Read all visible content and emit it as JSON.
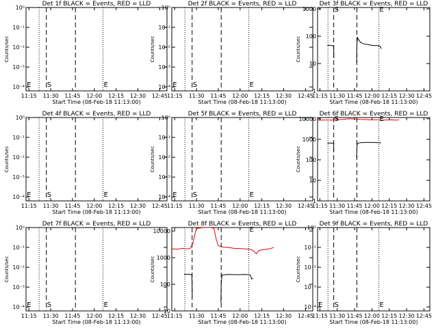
{
  "chart_data": [
    {
      "type": "line",
      "title": "Det 1f BLACK = Events, RED = LLD",
      "xlabel": "Start Time (08-Feb-18 11:13:00)",
      "ylabel": "Counts/sec",
      "xlim": [
        673,
        770
      ],
      "x_ticks": [
        "11:15",
        "11:30",
        "11:45",
        "12:00",
        "12:15",
        "12:30",
        "12:45"
      ],
      "yscale": "log",
      "y_ticks": [
        "10⁰",
        "10⁻¹",
        "10⁻²",
        "10⁻³",
        "10⁻⁴"
      ],
      "y_tick_exp": [
        0,
        -1,
        -2,
        -3,
        -4
      ],
      "ylim": [
        -4.2,
        0
      ],
      "dotted": [
        682,
        726
      ],
      "dashed": [
        687,
        707
      ],
      "markers": [
        {
          "text": "E",
          "x": 673.6,
          "y": -3.86
        },
        {
          "text": "S",
          "x": 687.5,
          "y": -3.86
        },
        {
          "text": "E",
          "x": 726.5,
          "y": -3.86
        }
      ],
      "series": []
    },
    {
      "type": "line",
      "title": "Det 2f BLACK = Events, RED = LLD",
      "xlabel": "Start Time (08-Feb-18 11:13:00)",
      "ylabel": "Counts/sec",
      "xlim": [
        673,
        770
      ],
      "x_ticks": [
        "11:15",
        "11:30",
        "11:45",
        "12:00",
        "12:15",
        "12:30",
        "12:45"
      ],
      "yscale": "log",
      "y_ticks": [
        "10⁰",
        "10⁻¹",
        "10⁻²",
        "10⁻³",
        "10⁻⁴"
      ],
      "y_tick_exp": [
        0,
        -1,
        -2,
        -3,
        -4
      ],
      "ylim": [
        -4.2,
        0
      ],
      "dotted": [
        682,
        726
      ],
      "dashed": [
        687,
        707
      ],
      "markers": [
        {
          "text": "E",
          "x": 673.6,
          "y": -3.86
        },
        {
          "text": "S",
          "x": 687.5,
          "y": -3.86
        },
        {
          "text": "E",
          "x": 726.5,
          "y": -3.86
        }
      ],
      "series": []
    },
    {
      "type": "line",
      "title": "Det 3f BLACK = Events, RED = LLD",
      "xlabel": "Start Time (08-Feb-18 11:13:00)",
      "ylabel": "Counts/sec",
      "xlim": [
        673,
        770
      ],
      "x_ticks": [
        "11:15",
        "11:30",
        "11:45",
        "12:00",
        "12:15",
        "12:30",
        "12:45"
      ],
      "yscale": "log",
      "y_ticks": [
        "1",
        "10",
        "100",
        "1000"
      ],
      "y_tick_exp": [
        0,
        1,
        2,
        3
      ],
      "ylim": [
        0,
        3.05
      ],
      "dotted": [
        682,
        726
      ],
      "dashed": [
        687,
        707
      ],
      "markers": [
        {
          "text": "S",
          "x": 687.5,
          "y": 3
        },
        {
          "text": "E",
          "x": 726.5,
          "y": 3
        }
      ],
      "series": [
        {
          "color": "#000000",
          "points": [
            [
              681.5,
              1.66
            ],
            [
              683,
              1.67
            ],
            [
              685,
              1.66
            ],
            [
              686.8,
              1.64
            ],
            [
              687,
              1.55
            ],
            [
              687.1,
              1.2
            ]
          ]
        },
        {
          "color": "#000000",
          "points": [
            [
              706.8,
              1.05
            ],
            [
              707,
              1.7
            ],
            [
              707.5,
              1.95
            ],
            [
              708.5,
              1.88
            ],
            [
              710,
              1.78
            ],
            [
              713,
              1.72
            ],
            [
              717,
              1.69
            ],
            [
              721,
              1.66
            ],
            [
              725,
              1.66
            ],
            [
              727,
              1.63
            ],
            [
              728.2,
              1.54
            ]
          ]
        }
      ]
    },
    {
      "type": "line",
      "title": "Det 4f BLACK = Events, RED = LLD",
      "xlabel": "Start Time (08-Feb-18 11:13:00)",
      "ylabel": "Counts/sec",
      "xlim": [
        673,
        770
      ],
      "x_ticks": [
        "11:15",
        "11:30",
        "11:45",
        "12:00",
        "12:15",
        "12:30",
        "12:45"
      ],
      "yscale": "log",
      "y_ticks": [
        "10⁰",
        "10⁻¹",
        "10⁻²",
        "10⁻³",
        "10⁻⁴"
      ],
      "y_tick_exp": [
        0,
        -1,
        -2,
        -3,
        -4
      ],
      "ylim": [
        -4.2,
        0
      ],
      "dotted": [
        682,
        726
      ],
      "dashed": [
        687,
        707
      ],
      "markers": [
        {
          "text": "E",
          "x": 673.6,
          "y": -3.86
        },
        {
          "text": "S",
          "x": 687.5,
          "y": -3.86
        },
        {
          "text": "E",
          "x": 726.5,
          "y": -3.86
        }
      ],
      "series": []
    },
    {
      "type": "line",
      "title": "Det 5f BLACK = Events, RED = LLD",
      "xlabel": "Start Time (08-Feb-18 11:13:00)",
      "ylabel": "Counts/sec",
      "xlim": [
        673,
        770
      ],
      "x_ticks": [
        "11:15",
        "11:30",
        "11:45",
        "12:00",
        "12:15",
        "12:30",
        "12:45"
      ],
      "yscale": "log",
      "y_ticks": [
        "10⁰",
        "10⁻¹",
        "10⁻²",
        "10⁻³",
        "10⁻⁴"
      ],
      "y_tick_exp": [
        0,
        -1,
        -2,
        -3,
        -4
      ],
      "ylim": [
        -4.2,
        0
      ],
      "dotted": [
        682,
        726
      ],
      "dashed": [
        687,
        707
      ],
      "markers": [
        {
          "text": "E",
          "x": 673.6,
          "y": -3.86
        },
        {
          "text": "S",
          "x": 687.5,
          "y": -3.86
        },
        {
          "text": "E",
          "x": 726.5,
          "y": -3.86
        }
      ],
      "series": []
    },
    {
      "type": "line",
      "title": "Det 6f BLACK = Events, RED = LLD",
      "xlabel": "Start Time (08-Feb-18 11:13:00)",
      "ylabel": "Counts/sec",
      "xlim": [
        673,
        770
      ],
      "x_ticks": [
        "11:15",
        "11:30",
        "11:45",
        "12:00",
        "12:15",
        "12:30",
        "12:45"
      ],
      "yscale": "log",
      "y_ticks": [
        "1",
        "10",
        "100",
        "1000",
        "10000"
      ],
      "y_tick_exp": [
        0,
        1,
        2,
        3,
        4
      ],
      "ylim": [
        0,
        4.06
      ],
      "dotted": [
        682,
        726
      ],
      "dashed": [
        687,
        707
      ],
      "markers": [
        {
          "text": "S",
          "x": 687.5,
          "y": 4.02
        },
        {
          "text": "E",
          "x": 726.5,
          "y": 4.02
        }
      ],
      "series": [
        {
          "color": "#e00000",
          "points": [
            [
              673,
              3.93
            ],
            [
              678,
              3.94
            ],
            [
              683,
              3.94
            ],
            [
              686,
              3.93
            ],
            [
              687,
              4.0
            ],
            [
              688,
              3.97
            ],
            [
              690,
              3.95
            ],
            [
              695,
              3.97
            ],
            [
              700,
              4.0
            ],
            [
              705,
              3.99
            ],
            [
              710,
              3.97
            ],
            [
              715,
              3.96
            ],
            [
              720,
              3.95
            ],
            [
              725,
              3.95
            ],
            [
              728,
              3.93
            ],
            [
              732,
              3.94
            ],
            [
              737,
              3.95
            ],
            [
              741,
              3.93
            ],
            [
              743.2,
              3.95
            ]
          ]
        },
        {
          "color": "#000000",
          "points": [
            [
              681.5,
              2.81
            ],
            [
              684,
              2.82
            ],
            [
              686.8,
              2.81
            ],
            [
              687,
              2.4
            ]
          ]
        },
        {
          "color": "#000000",
          "points": [
            [
              706.8,
              2.1
            ],
            [
              707,
              2.6
            ],
            [
              707.5,
              2.8
            ],
            [
              710,
              2.84
            ],
            [
              715,
              2.85
            ],
            [
              720,
              2.85
            ],
            [
              725,
              2.84
            ],
            [
              728,
              2.83
            ]
          ]
        }
      ]
    },
    {
      "type": "line",
      "title": "Det 7f BLACK = Events, RED = LLD",
      "xlabel": "Start Time (08-Feb-18 11:13:00)",
      "ylabel": "Counts/sec",
      "xlim": [
        673,
        770
      ],
      "x_ticks": [
        "11:15",
        "11:30",
        "11:45",
        "12:00",
        "12:15",
        "12:30",
        "12:45"
      ],
      "yscale": "log",
      "y_ticks": [
        "10⁰",
        "10⁻¹",
        "10⁻²",
        "10⁻³",
        "10⁻⁴"
      ],
      "y_tick_exp": [
        0,
        -1,
        -2,
        -3,
        -4
      ],
      "ylim": [
        -4.2,
        0
      ],
      "dotted": [
        682,
        726
      ],
      "dashed": [
        687,
        707
      ],
      "markers": [
        {
          "text": "E",
          "x": 673.6,
          "y": -3.86
        },
        {
          "text": "S",
          "x": 687.5,
          "y": -3.86
        },
        {
          "text": "E",
          "x": 726.5,
          "y": -3.86
        }
      ],
      "series": []
    },
    {
      "type": "line",
      "title": "Det 8f BLACK = Events, RED = LLD",
      "xlabel": "Start Time (08-Feb-18 11:13:00)",
      "ylabel": "Counts/sec",
      "xlim": [
        673,
        770
      ],
      "x_ticks": [
        "11:15",
        "11:30",
        "11:45",
        "12:00",
        "12:15",
        "12:30",
        "12:45"
      ],
      "yscale": "log",
      "y_ticks": [
        "10",
        "100",
        "1000",
        "10000"
      ],
      "y_tick_exp": [
        1,
        2,
        3,
        4
      ],
      "ylim": [
        1,
        4.13
      ],
      "dotted": [
        682,
        726
      ],
      "dashed": [
        687,
        707
      ],
      "markers": [
        {
          "text": "E",
          "x": 726.5,
          "y": 4.08
        }
      ],
      "series": [
        {
          "color": "#e00000",
          "points": [
            [
              673,
              3.33
            ],
            [
              677,
              3.32
            ],
            [
              681,
              3.35
            ],
            [
              684,
              3.33
            ],
            [
              686,
              3.36
            ],
            [
              687.5,
              3.55
            ],
            [
              689,
              3.9
            ],
            [
              690,
              4.1
            ],
            [
              695,
              4.13
            ],
            [
              700,
              4.13
            ],
            [
              702,
              4.1
            ],
            [
              703.5,
              3.7
            ],
            [
              705,
              3.45
            ],
            [
              708,
              3.4
            ],
            [
              712,
              3.38
            ],
            [
              716,
              3.35
            ],
            [
              720,
              3.34
            ],
            [
              724,
              3.33
            ],
            [
              727,
              3.31
            ],
            [
              729,
              3.27
            ],
            [
              731,
              3.15
            ],
            [
              733,
              3.27
            ],
            [
              736,
              3.3
            ],
            [
              740,
              3.33
            ],
            [
              743.2,
              3.38
            ]
          ]
        },
        {
          "color": "#000000",
          "points": [
            [
              681.5,
              2.37
            ],
            [
              684,
              2.38
            ],
            [
              686.8,
              2.36
            ],
            [
              687,
              2.0
            ],
            [
              687.1,
              1.5
            ]
          ]
        },
        {
          "color": "#000000",
          "points": [
            [
              706.8,
              1.3
            ],
            [
              707,
              2.0
            ],
            [
              707.5,
              2.35
            ],
            [
              712,
              2.37
            ],
            [
              718,
              2.36
            ],
            [
              724,
              2.37
            ],
            [
              727,
              2.35
            ],
            [
              728,
              2.2
            ],
            [
              729,
              2.22
            ]
          ]
        }
      ]
    },
    {
      "type": "line",
      "title": "Det 9f BLACK = Events, RED = LLD",
      "xlabel": "Start Time (08-Feb-18 11:13:00)",
      "ylabel": "Counts/sec",
      "xlim": [
        673,
        770
      ],
      "x_ticks": [
        "11:15",
        "11:30",
        "11:45",
        "12:00",
        "12:15",
        "12:30",
        "12:45"
      ],
      "yscale": "log",
      "y_ticks": [
        "10⁰",
        "10⁻¹",
        "10⁻²",
        "10⁻³",
        "10⁻⁴"
      ],
      "y_tick_exp": [
        0,
        -1,
        -2,
        -3,
        -4
      ],
      "ylim": [
        -4.2,
        0
      ],
      "dotted": [
        682,
        726
      ],
      "dashed": [
        687,
        707
      ],
      "markers": [
        {
          "text": "E",
          "x": 673.6,
          "y": -3.86
        },
        {
          "text": "S",
          "x": 687.5,
          "y": -3.86
        },
        {
          "text": "E",
          "x": 726.5,
          "y": -3.86
        }
      ],
      "series": []
    }
  ]
}
